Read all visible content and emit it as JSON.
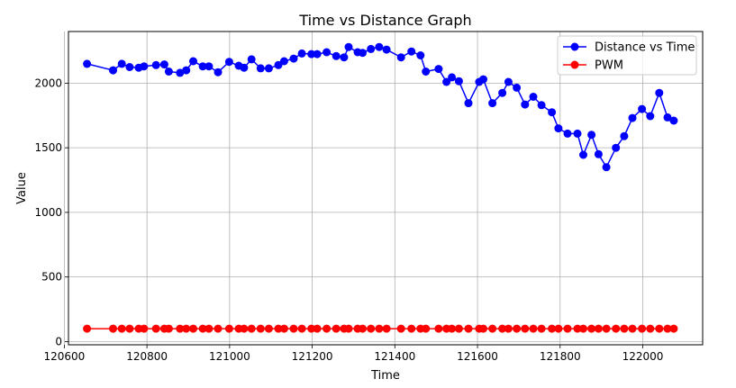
{
  "chart_data": {
    "type": "line",
    "title": "Time vs Distance Graph",
    "xlabel": "Time",
    "ylabel": "Value",
    "xlim": [
      120610,
      122145
    ],
    "ylim": [
      -25,
      2400
    ],
    "xticks": [
      120600,
      120800,
      121000,
      121200,
      121400,
      121600,
      121800,
      122000
    ],
    "yticks": [
      0,
      500,
      1000,
      1500,
      2000
    ],
    "grid": true,
    "legend_position": "top-right",
    "series": [
      {
        "name": "Distance vs Time",
        "color": "#0000ff",
        "x": [
          120655,
          120718,
          120739,
          120758,
          120780,
          120793,
          120822,
          120842,
          120853,
          120880,
          120895,
          120912,
          120935,
          120950,
          120972,
          120999,
          121022,
          121035,
          121053,
          121075,
          121095,
          121118,
          121132,
          121155,
          121175,
          121198,
          121212,
          121235,
          121258,
          121277,
          121288,
          121310,
          121322,
          121342,
          121362,
          121380,
          121415,
          121440,
          121462,
          121475,
          121506,
          121525,
          121538,
          121555,
          121578,
          121604,
          121614,
          121636,
          121660,
          121675,
          121695,
          121715,
          121735,
          121755,
          121780,
          121796,
          121818,
          121842,
          121856,
          121876,
          121893,
          121912,
          121935,
          121955,
          121975,
          121998,
          122018,
          122040,
          122060,
          122075
        ],
        "y": [
          2150,
          2100,
          2150,
          2125,
          2120,
          2130,
          2140,
          2145,
          2090,
          2080,
          2100,
          2170,
          2130,
          2130,
          2085,
          2165,
          2135,
          2120,
          2185,
          2115,
          2115,
          2140,
          2170,
          2190,
          2230,
          2225,
          2225,
          2240,
          2210,
          2200,
          2280,
          2240,
          2235,
          2265,
          2280,
          2260,
          2200,
          2245,
          2215,
          2090,
          2110,
          2010,
          2045,
          2015,
          1845,
          2010,
          2030,
          1845,
          1925,
          2010,
          1965,
          1835,
          1895,
          1830,
          1775,
          1650,
          1610,
          1610,
          1445,
          1600,
          1450,
          1350,
          1500,
          1590,
          1730,
          1800,
          1745,
          1925,
          1735,
          1710
        ]
      },
      {
        "name": "PWM",
        "color": "#ff0000",
        "x": [
          120655,
          120718,
          120739,
          120758,
          120780,
          120793,
          120822,
          120842,
          120853,
          120880,
          120895,
          120912,
          120935,
          120950,
          120972,
          120999,
          121022,
          121035,
          121053,
          121075,
          121095,
          121118,
          121132,
          121155,
          121175,
          121198,
          121212,
          121235,
          121258,
          121277,
          121288,
          121310,
          121322,
          121342,
          121362,
          121380,
          121415,
          121440,
          121462,
          121475,
          121506,
          121525,
          121538,
          121555,
          121578,
          121604,
          121614,
          121636,
          121660,
          121675,
          121695,
          121715,
          121735,
          121755,
          121780,
          121796,
          121818,
          121842,
          121856,
          121876,
          121893,
          121912,
          121935,
          121955,
          121975,
          121998,
          122018,
          122040,
          122060,
          122075
        ],
        "y": [
          100,
          100,
          100,
          100,
          100,
          100,
          100,
          100,
          100,
          100,
          100,
          100,
          100,
          100,
          100,
          100,
          100,
          100,
          100,
          100,
          100,
          100,
          100,
          100,
          100,
          100,
          100,
          100,
          100,
          100,
          100,
          100,
          100,
          100,
          100,
          100,
          100,
          100,
          100,
          100,
          100,
          100,
          100,
          100,
          100,
          100,
          100,
          100,
          100,
          100,
          100,
          100,
          100,
          100,
          100,
          100,
          100,
          100,
          100,
          100,
          100,
          100,
          100,
          100,
          100,
          100,
          100,
          100,
          100,
          100
        ]
      }
    ]
  }
}
